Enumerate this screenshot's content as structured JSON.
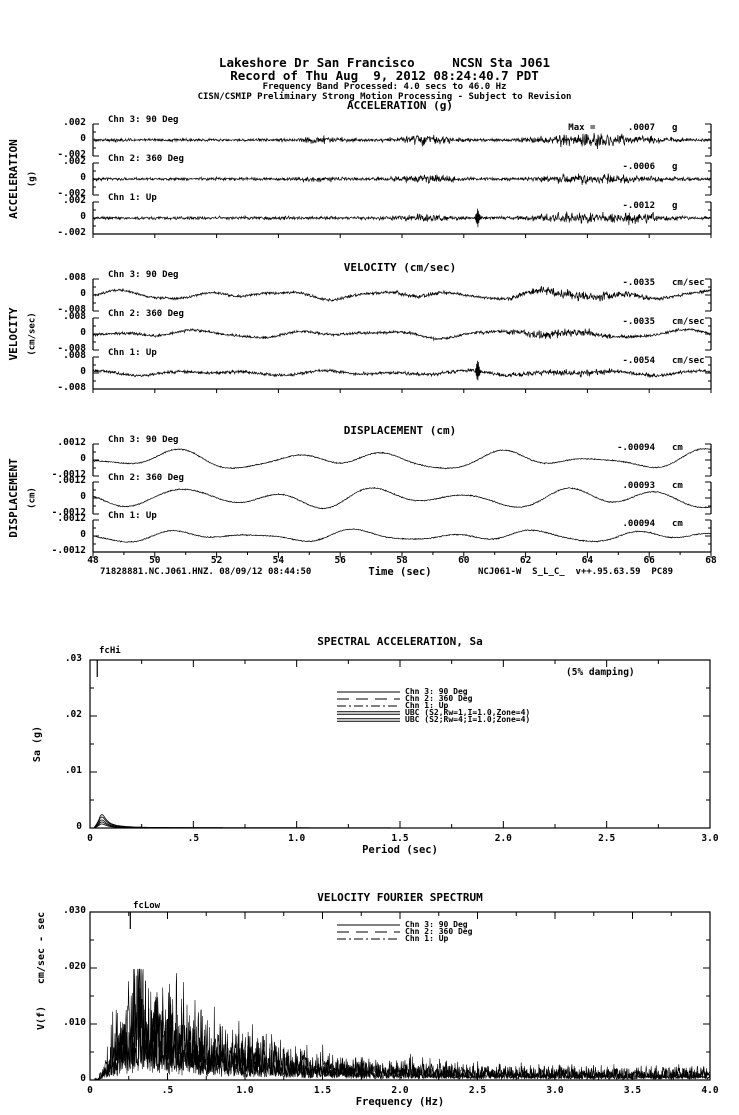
{
  "header": {
    "line1": "Lakeshore Dr San Francisco     NCSN Sta J061",
    "line2": "Record of Thu Aug  9, 2012 08:24:40.7 PDT",
    "line3": "Frequency Band Processed: 4.0 secs to 46.0 Hz",
    "line4": "CISN/CSMIP Preliminary Strong Motion Processing - Subject to Revision"
  },
  "footer": {
    "left": "71828881.NC.J061.HNZ. 08/09/12 08:44:50",
    "right": "NCJ061-W  S_L_C_  v++.95.63.59  PC89"
  },
  "labels": {
    "acceleration": "ACCELERATION",
    "acceleration_units": "(g)",
    "velocity": "VELOCITY",
    "velocity_units": "(cm/sec)",
    "displacement": "DISPLACEMENT",
    "displacement_units": "(cm)",
    "sa_y": "Sa (g)",
    "fourier_y_units": "cm/sec - sec",
    "fourier_y": "V(f)"
  },
  "chart_data": [
    {
      "id": "acceleration",
      "type": "line",
      "title": "ACCELERATION (g)",
      "x_range": [
        48,
        68
      ],
      "x_tick_step": 2,
      "y_full_scale": 0.002,
      "y_scale_labels": [
        ".002",
        "0",
        "-.002"
      ],
      "series": [
        {
          "name": "Chn 3: 90 Deg",
          "max_label": "Max =      .0007",
          "max_value": 0.0007,
          "units": "g",
          "gen": {
            "noise": 9e-05,
            "sines": [],
            "bursts": [
              {
                "c": 55.3,
                "w": 0.7,
                "a": 0.00018
              },
              {
                "c": 58.8,
                "w": 0.8,
                "a": 0.0003
              },
              {
                "c": 64.3,
                "w": 1.5,
                "a": 0.00042
              }
            ],
            "spikes": []
          }
        },
        {
          "name": "Chn 2: 360 Deg",
          "max_label": "-.0006",
          "max_value": -0.0006,
          "units": "g",
          "gen": {
            "noise": 9e-05,
            "sines": [],
            "bursts": [
              {
                "c": 55.3,
                "w": 0.7,
                "a": 0.00015
              },
              {
                "c": 58.8,
                "w": 0.9,
                "a": 0.00025
              },
              {
                "c": 64.3,
                "w": 1.5,
                "a": 0.0003
              }
            ],
            "spikes": []
          }
        },
        {
          "name": "Chn 1: Up",
          "max_label": "-.0012",
          "max_value": -0.0012,
          "units": "g",
          "gen": {
            "noise": 9e-05,
            "sines": [],
            "bursts": [
              {
                "c": 58.8,
                "w": 0.8,
                "a": 0.0002
              },
              {
                "c": 63.6,
                "w": 1.2,
                "a": 0.00028
              },
              {
                "c": 65.5,
                "w": 0.9,
                "a": 0.00028
              }
            ],
            "spikes": [
              {
                "t": 60.45,
                "a": 0.0012
              }
            ]
          }
        }
      ]
    },
    {
      "id": "velocity",
      "type": "line",
      "title": "VELOCITY (cm/sec)",
      "x_range": [
        48,
        68
      ],
      "x_tick_step": 2,
      "y_full_scale": 0.008,
      "y_scale_labels": [
        ".008",
        "0",
        "-.008"
      ],
      "series": [
        {
          "name": "Chn 3: 90 Deg",
          "max_label": "-.0035",
          "max_value": -0.0035,
          "units": "cm/sec",
          "gen": {
            "noise": 0.00032,
            "sines": [
              {
                "p": 2.7,
                "a": 0.0012,
                "ph": 0.7
              },
              {
                "p": 4.9,
                "a": 0.001,
                "ph": 2.3
              },
              {
                "p": 1.5,
                "a": 0.0004,
                "ph": 4.4
              }
            ],
            "bursts": [
              {
                "c": 58.8,
                "w": 0.7,
                "a": 0.0005
              },
              {
                "c": 63.8,
                "w": 1.6,
                "a": 0.0012
              }
            ],
            "spikes": []
          }
        },
        {
          "name": "Chn 2: 360 Deg",
          "max_label": "-.0035",
          "max_value": -0.0035,
          "units": "cm/sec",
          "gen": {
            "noise": 0.00032,
            "sines": [
              {
                "p": 3.1,
                "a": 0.0011,
                "ph": 3.9
              },
              {
                "p": 5.6,
                "a": 0.0009,
                "ph": 1.2
              },
              {
                "p": 1.8,
                "a": 0.0004,
                "ph": 5.6
              }
            ],
            "bursts": [
              {
                "c": 62.9,
                "w": 1.4,
                "a": 0.001
              }
            ],
            "spikes": []
          }
        },
        {
          "name": "Chn 1: Up",
          "max_label": "-.0054",
          "max_value": -0.0054,
          "units": "cm/sec",
          "gen": {
            "noise": 0.00038,
            "sines": [
              {
                "p": 2.4,
                "a": 0.0007,
                "ph": 1.1
              },
              {
                "p": 4.1,
                "a": 0.0006,
                "ph": 3.9
              }
            ],
            "bursts": [
              {
                "c": 63.5,
                "w": 1.4,
                "a": 0.0007
              }
            ],
            "spikes": [
              {
                "t": 60.45,
                "a": 0.0052
              }
            ]
          }
        }
      ]
    },
    {
      "id": "displacement",
      "type": "line",
      "title": "DISPLACEMENT (cm)",
      "xlabel": "Time (sec)",
      "x_range": [
        48,
        68
      ],
      "x_tick_step": 2,
      "y_full_scale": 0.0012,
      "y_scale_labels": [
        ".0012",
        "0",
        "-.0012"
      ],
      "series": [
        {
          "name": "Chn 3: 90 Deg",
          "max_label": "-.00094",
          "max_value": -0.00094,
          "units": "cm",
          "gen": {
            "noise": 2e-05,
            "sines": [
              {
                "p": 3.4,
                "a": 0.00042,
                "ph": 1.8
              },
              {
                "p": 5.9,
                "a": 0.00032,
                "ph": 4.6
              },
              {
                "p": 2.1,
                "a": 0.00013,
                "ph": 0.3
              }
            ],
            "bursts": [],
            "spikes": []
          }
        },
        {
          "name": "Chn 2: 360 Deg",
          "max_label": ".00093",
          "max_value": 0.00093,
          "units": "cm",
          "gen": {
            "noise": 2e-05,
            "sines": [
              {
                "p": 3.1,
                "a": 0.00048,
                "ph": 5.3
              },
              {
                "p": 6.5,
                "a": 0.0003,
                "ph": 2.2
              },
              {
                "p": 2.3,
                "a": 0.0001,
                "ph": 3.8
              }
            ],
            "bursts": [],
            "spikes": []
          }
        },
        {
          "name": "Chn 1: Up",
          "max_label": ".00094",
          "max_value": 0.00094,
          "units": "cm",
          "gen": {
            "noise": 2e-05,
            "sines": [
              {
                "p": 3.0,
                "a": 0.00026,
                "ph": 2.7
              },
              {
                "p": 5.1,
                "a": 0.0002,
                "ph": 0.9
              },
              {
                "p": 1.9,
                "a": 8e-05,
                "ph": 4.2
              }
            ],
            "bursts": [],
            "spikes": []
          }
        }
      ]
    },
    {
      "id": "spectral_acceleration",
      "type": "line",
      "title": "SPECTRAL ACCELERATION, Sa",
      "xlabel": "Period (sec)",
      "ylabel": "Sa (g)",
      "x_range": [
        0,
        3
      ],
      "y_range": [
        0,
        0.03
      ],
      "x_ticks": [
        [
          0,
          "0"
        ],
        [
          0.5,
          ".5"
        ],
        [
          1,
          "1.0"
        ],
        [
          1.5,
          "1.5"
        ],
        [
          2,
          "2.0"
        ],
        [
          2.5,
          "2.5"
        ],
        [
          3,
          "3.0"
        ]
      ],
      "y_ticks": [
        [
          0.03,
          ".03"
        ],
        [
          0.02,
          ".02"
        ],
        [
          0.01,
          ".01"
        ],
        [
          0,
          "0"
        ]
      ],
      "damping_note": "(5% damping)",
      "annotation": {
        "text": "fcHi",
        "x": 0.035
      },
      "legend": [
        {
          "label": "Chn 3: 90 Deg",
          "style": "solid"
        },
        {
          "label": "Chn 2: 360 Deg",
          "style": "long-dash"
        },
        {
          "label": "Chn 1: Up",
          "style": "dash-dot"
        },
        {
          "label": "UBC (S2,Rw=1,I=1.0,Zone=4)",
          "style": "double"
        },
        {
          "label": "UBC (S2;Rw=4;I=1.0;Zone=4)",
          "style": "double"
        }
      ],
      "curve_points": [
        [
          0.02,
          5e-05
        ],
        [
          0.04,
          0.0012
        ],
        [
          0.05,
          0.0022
        ],
        [
          0.06,
          0.0025
        ],
        [
          0.08,
          0.0014
        ],
        [
          0.1,
          0.0008
        ],
        [
          0.13,
          0.00045
        ],
        [
          0.17,
          0.00028
        ],
        [
          0.22,
          0.00016
        ],
        [
          0.3,
          0.0001
        ],
        [
          0.45,
          6e-05
        ],
        [
          0.7,
          4e-05
        ],
        [
          1.2,
          3e-05
        ],
        [
          2.0,
          2e-05
        ],
        [
          3.0,
          2e-05
        ]
      ],
      "series_scales": [
        1,
        0.82,
        0.6,
        0.3,
        0.45
      ]
    },
    {
      "id": "velocity_fourier_spectrum",
      "type": "line",
      "title": "VELOCITY FOURIER SPECTRUM",
      "xlabel": "Frequency (Hz)",
      "ylabel": "V(f)  cm/sec - sec",
      "x_range": [
        0,
        4
      ],
      "y_range": [
        0,
        0.03
      ],
      "x_ticks": [
        [
          0,
          "0"
        ],
        [
          0.5,
          ".5"
        ],
        [
          1,
          "1.0"
        ],
        [
          1.5,
          "1.5"
        ],
        [
          2,
          "2.0"
        ],
        [
          2.5,
          "2.5"
        ],
        [
          3,
          "3.0"
        ],
        [
          3.5,
          "3.5"
        ],
        [
          4,
          "4.0"
        ]
      ],
      "y_ticks": [
        [
          0.03,
          ".030"
        ],
        [
          0.02,
          ".020"
        ],
        [
          0.01,
          ".010"
        ],
        [
          0,
          "0"
        ]
      ],
      "annotation": {
        "text": "fcLow",
        "x": 0.26
      },
      "legend": [
        {
          "label": "Chn 3: 90 Deg",
          "style": "solid"
        },
        {
          "label": "Chn 2: 360 Deg",
          "style": "long-dash"
        },
        {
          "label": "Chn 1: Up",
          "style": "dash-dot"
        }
      ],
      "envelope_points": [
        [
          0.05,
          0.0002
        ],
        [
          0.1,
          0.002
        ],
        [
          0.15,
          0.005
        ],
        [
          0.2,
          0.008
        ],
        [
          0.25,
          0.009
        ],
        [
          0.3,
          0.012
        ],
        [
          0.33,
          0.014
        ],
        [
          0.38,
          0.01
        ],
        [
          0.45,
          0.009
        ],
        [
          0.55,
          0.008
        ],
        [
          0.7,
          0.006
        ],
        [
          0.9,
          0.005
        ],
        [
          1.1,
          0.004
        ],
        [
          1.3,
          0.003
        ],
        [
          1.6,
          0.0022
        ],
        [
          2.0,
          0.0018
        ],
        [
          2.5,
          0.0015
        ],
        [
          3.0,
          0.0013
        ],
        [
          3.5,
          0.0012
        ],
        [
          4.0,
          0.0012
        ]
      ],
      "series_scales": [
        1,
        0.85,
        0.55
      ],
      "peak_value": 0.019,
      "peak_frequency": 0.33
    }
  ]
}
